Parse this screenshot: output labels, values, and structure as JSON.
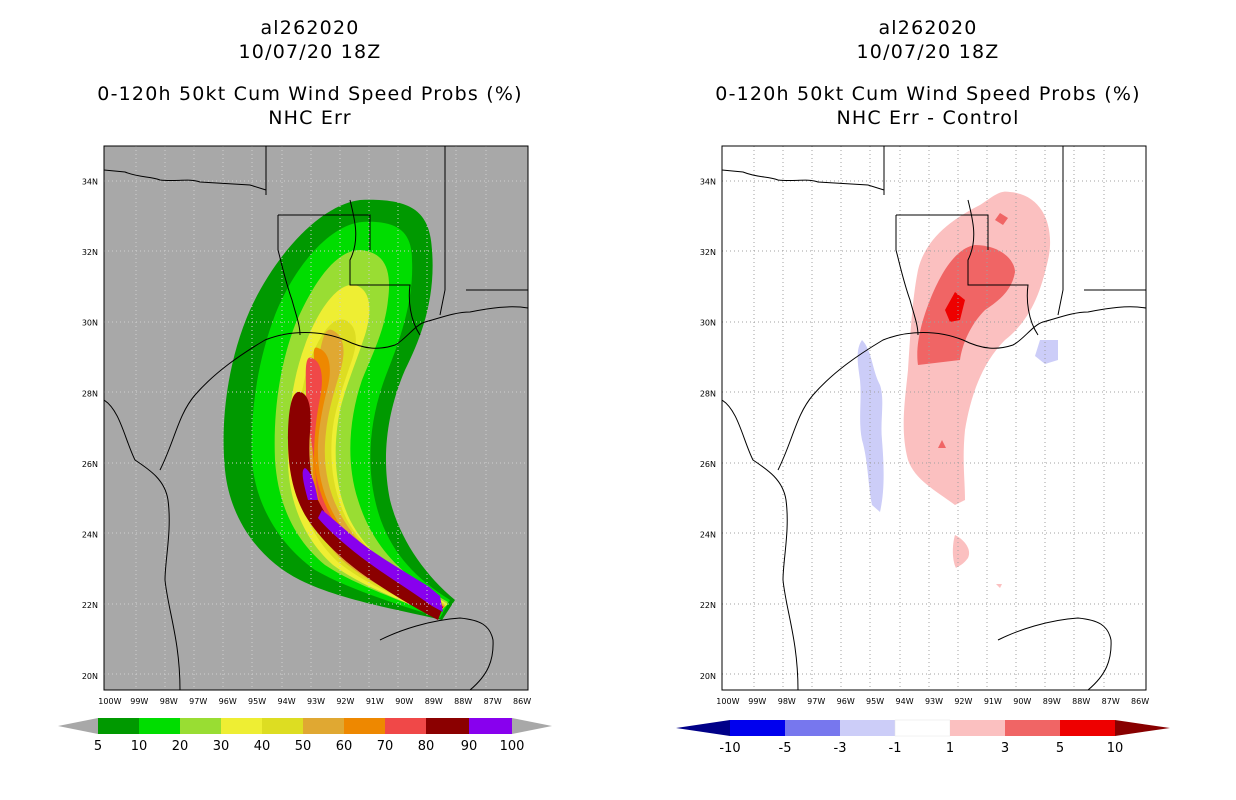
{
  "left": {
    "title_line1": "al262020",
    "title_line2": "10/07/20 18Z",
    "title_line3": "0-120h 50kt Cum Wind Speed Probs (%)",
    "title_line4": "NHC Err"
  },
  "right": {
    "title_line1": "al262020",
    "title_line2": "10/07/20 18Z",
    "title_line3": "0-120h 50kt Cum Wind Speed Probs (%)",
    "title_line4": "NHC Err - Control"
  },
  "chart_data": [
    {
      "type": "heatmap",
      "title": "0-120h 50kt Cum Wind Speed Probs (%) - NHC Err",
      "x_tick_labels": [
        "100W",
        "99W",
        "98W",
        "97W",
        "96W",
        "95W",
        "94W",
        "93W",
        "92W",
        "91W",
        "90W",
        "89W",
        "88W",
        "87W",
        "86W"
      ],
      "y_tick_labels": [
        "20N",
        "22N",
        "24N",
        "26N",
        "28N",
        "30N",
        "32N",
        "34N"
      ],
      "xlim": [
        -100.2,
        -85.8
      ],
      "ylim": [
        19.6,
        35.0
      ],
      "legend_levels": [
        "5",
        "10",
        "20",
        "30",
        "40",
        "50",
        "60",
        "70",
        "80",
        "90",
        "100"
      ],
      "legend_colors": [
        "#009900",
        "#00dd00",
        "#99dd33",
        "#eeee33",
        "#dddd22",
        "#e0a832",
        "#ee8800",
        "#f04848",
        "#8b0000",
        "#8800ee"
      ],
      "legend_placement": "bottom"
    },
    {
      "type": "heatmap",
      "title": "0-120h 50kt Cum Wind Speed Probs (%) - NHC Err - Control",
      "x_tick_labels": [
        "100W",
        "99W",
        "98W",
        "97W",
        "96W",
        "95W",
        "94W",
        "93W",
        "92W",
        "91W",
        "90W",
        "89W",
        "88W",
        "87W",
        "86W"
      ],
      "y_tick_labels": [
        "20N",
        "22N",
        "24N",
        "26N",
        "28N",
        "30N",
        "32N",
        "34N"
      ],
      "xlim": [
        -100.2,
        -85.8
      ],
      "ylim": [
        19.6,
        35.0
      ],
      "legend_levels": [
        "-10",
        "-5",
        "-3",
        "-1",
        "1",
        "3",
        "5",
        "10"
      ],
      "legend_colors": [
        "#000088",
        "#0000ee",
        "#7777ee",
        "#cccdf8",
        "#ffffff",
        "#fbc0c0",
        "#f06565",
        "#ee0000",
        "#880000"
      ],
      "legend_placement": "bottom"
    }
  ]
}
